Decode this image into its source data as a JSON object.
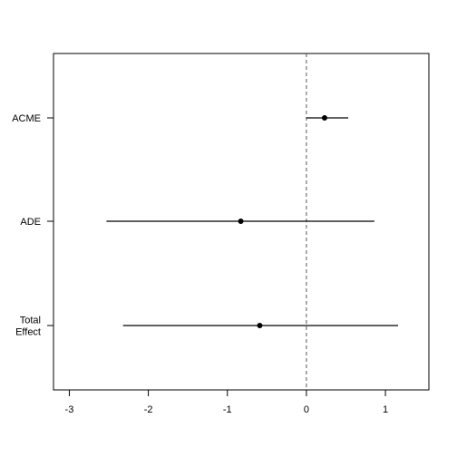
{
  "chart_data": {
    "type": "scatter",
    "subtype": "forest-plot",
    "title": "",
    "xlabel": "",
    "ylabel": "",
    "xlim": [
      -3.2,
      1.55
    ],
    "x_ticks": [
      "-3",
      "-2",
      "-1",
      "0",
      "1"
    ],
    "reference_line": {
      "x": 0,
      "style": "dashed"
    },
    "rows": [
      {
        "label_lines": [
          "ACME"
        ],
        "estimate": 0.23,
        "lower": 0.0,
        "upper": 0.53
      },
      {
        "label_lines": [
          "ADE"
        ],
        "estimate": -0.83,
        "lower": -2.53,
        "upper": 0.86
      },
      {
        "label_lines": [
          "Total",
          "Effect"
        ],
        "estimate": -0.59,
        "lower": -2.32,
        "upper": 1.16
      }
    ],
    "grid": false,
    "legend": "none"
  }
}
